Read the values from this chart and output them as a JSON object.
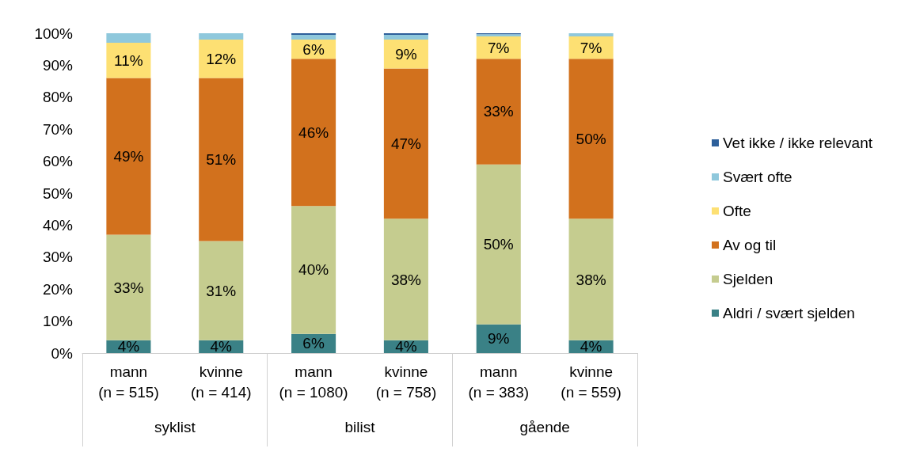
{
  "chart_data": {
    "type": "bar",
    "stacked": true,
    "categories": [
      "mann\n(n = 515)",
      "kvinne\n(n = 414)",
      "mann\n(n = 1080)",
      "kvinne\n(n = 758)",
      "mann\n(n = 383)",
      "kvinne\n(n = 559)"
    ],
    "annotations": [
      "syklist",
      "bilist",
      "gående"
    ],
    "series": [
      {
        "name": "Aldri / svært sjelden",
        "color": "#3a8186",
        "values": [
          4,
          4,
          6,
          4,
          9,
          4
        ],
        "value_labels": [
          "4%",
          "4%",
          "6%",
          "4%",
          "9%",
          "4%"
        ]
      },
      {
        "name": "Sjelden",
        "color": "#c5cc8f",
        "values": [
          33,
          31,
          40,
          38,
          50,
          38
        ],
        "value_labels": [
          "33%",
          "31%",
          "40%",
          "38%",
          "50%",
          "38%"
        ]
      },
      {
        "name": "Av og til",
        "color": "#d2711d",
        "values": [
          49,
          51,
          46,
          47,
          33,
          50
        ],
        "value_labels": [
          "49%",
          "51%",
          "46%",
          "47%",
          "33%",
          "50%"
        ]
      },
      {
        "name": "Ofte",
        "color": "#fde073",
        "values": [
          11,
          12,
          6,
          9,
          7,
          7
        ],
        "value_labels": [
          "11%",
          "12%",
          "6%",
          "9%",
          "7%",
          "7%"
        ]
      },
      {
        "name": "Svært ofte",
        "color": "#8fc8dc",
        "values": [
          3,
          2,
          1.5,
          1.5,
          0.7,
          1
        ],
        "value_labels": [
          null,
          null,
          null,
          null,
          null,
          null
        ]
      },
      {
        "name": "Vet ikke / ikke relevant",
        "color": "#2d5f9a",
        "values": [
          0,
          0,
          0.5,
          0.5,
          0.3,
          0
        ],
        "value_labels": [
          null,
          null,
          null,
          null,
          null,
          null
        ]
      }
    ],
    "ylim": [
      0,
      100
    ],
    "yticks": [
      {
        "value": 0,
        "label": "0%"
      },
      {
        "value": 10,
        "label": "10%"
      },
      {
        "value": 20,
        "label": "20%"
      },
      {
        "value": 30,
        "label": "30%"
      },
      {
        "value": 40,
        "label": "40%"
      },
      {
        "value": 50,
        "label": "50%"
      },
      {
        "value": 60,
        "label": "60%"
      },
      {
        "value": 70,
        "label": "70%"
      },
      {
        "value": 80,
        "label": "80%"
      },
      {
        "value": 90,
        "label": "90%"
      },
      {
        "value": 100,
        "label": "100%"
      }
    ],
    "grid": false,
    "legend": "right"
  }
}
